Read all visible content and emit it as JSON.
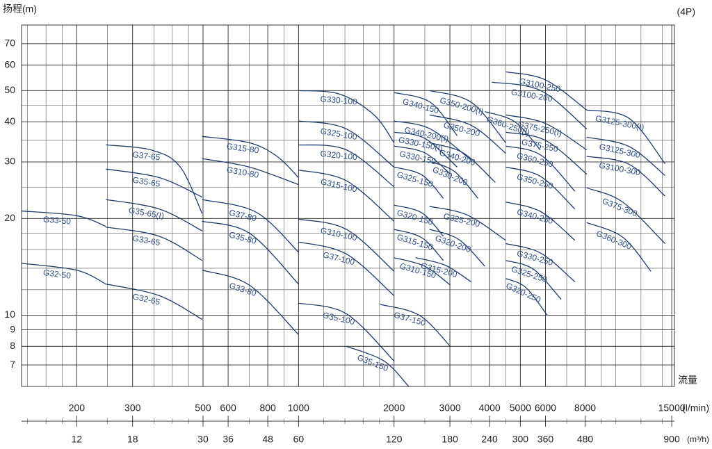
{
  "chart_data": {
    "type": "line",
    "annotation": "(4P)",
    "y_label": "扬程(m)",
    "x_label": "流量",
    "x_unit": "(l/min)",
    "x2_unit": "(m³/h)",
    "log_x": true,
    "log_y": true,
    "grid": true,
    "color": "#1f3a6b",
    "xlim": [
      134,
      15300
    ],
    "x2lim": [
      8.04,
      918
    ],
    "ylim": [
      6,
      80
    ],
    "xticks": [
      200,
      300,
      500,
      600,
      800,
      1000,
      2000,
      3000,
      4000,
      5000,
      6000,
      8000,
      15000
    ],
    "x2ticks": [
      12,
      18,
      30,
      36,
      48,
      60,
      120,
      180,
      240,
      300,
      360,
      480,
      900
    ],
    "yticks": [
      7,
      8,
      9,
      10,
      20,
      30,
      40,
      50,
      60,
      70
    ],
    "series": [
      {
        "name": "G33-50",
        "x": [
          134,
          200,
          247
        ],
        "values": [
          21.1,
          20.4,
          18.9
        ]
      },
      {
        "name": "G32-50",
        "x": [
          134,
          200,
          247
        ],
        "values": [
          14.5,
          13.8,
          12.5
        ]
      },
      {
        "name": "G37-65",
        "x": [
          247,
          346,
          424,
          497
        ],
        "values": [
          33.9,
          32.6,
          28.9,
          20.7
        ]
      },
      {
        "name": "G35-65",
        "x": [
          247,
          364,
          497
        ],
        "values": [
          28.5,
          26.8,
          23.3
        ]
      },
      {
        "name": "G35-65(I)",
        "x": [
          247,
          364,
          497
        ],
        "values": [
          22.9,
          21.4,
          18.3
        ]
      },
      {
        "name": "G33-65",
        "x": [
          247,
          364,
          497
        ],
        "values": [
          18.8,
          17.6,
          14.8
        ]
      },
      {
        "name": "G32-65",
        "x": [
          247,
          364,
          497
        ],
        "values": [
          12.5,
          11.5,
          9.7
        ]
      },
      {
        "name": "G315-80",
        "x": [
          497,
          700,
          856,
          1000
        ],
        "values": [
          36.0,
          34.4,
          31.2,
          26.8
        ]
      },
      {
        "name": "G310-80",
        "x": [
          497,
          700,
          1000
        ],
        "values": [
          30.7,
          28.9,
          25.5
        ]
      },
      {
        "name": "G37-80",
        "x": [
          497,
          736,
          1000
        ],
        "values": [
          22.9,
          20.9,
          15.7
        ]
      },
      {
        "name": "G35-80",
        "x": [
          497,
          700,
          1000
        ],
        "values": [
          19.6,
          18.0,
          12.5
        ]
      },
      {
        "name": "G33-80",
        "x": [
          497,
          700,
          1000
        ],
        "values": [
          13.8,
          12.4,
          8.7
        ]
      },
      {
        "name": "G330-100",
        "x": [
          1000,
          1345,
          1730,
          2000
        ],
        "values": [
          50.0,
          48.8,
          42.0,
          34.4
        ]
      },
      {
        "name": "G325-100",
        "x": [
          1000,
          1415,
          2000
        ],
        "values": [
          40.2,
          38.0,
          28.9
        ]
      },
      {
        "name": "G320-100",
        "x": [
          1000,
          1415,
          2000
        ],
        "values": [
          33.9,
          32.7,
          25.1
        ]
      },
      {
        "name": "G315-100",
        "x": [
          1000,
          1415,
          2000
        ],
        "values": [
          28.3,
          26.2,
          19.6
        ]
      },
      {
        "name": "G310-100",
        "x": [
          1000,
          1415,
          2000
        ],
        "values": [
          19.9,
          18.5,
          13.7
        ]
      },
      {
        "name": "G37-100",
        "x": [
          1000,
          1415,
          2000
        ],
        "values": [
          16.9,
          15.5,
          11.5
        ]
      },
      {
        "name": "G35-100",
        "x": [
          1000,
          1415,
          2000
        ],
        "values": [
          10.9,
          10.1,
          7.2
        ]
      },
      {
        "name": "G35-150",
        "x": [
          1415,
          1860,
          2224
        ],
        "values": [
          8.0,
          7.2,
          6.0
        ]
      },
      {
        "name": "G340-150",
        "x": [
          2000,
          2600,
          3162
        ],
        "values": [
          49.3,
          46,
          36.2
        ]
      },
      {
        "name": "G340-200(I)",
        "x": [
          2000,
          2600,
          3497
        ],
        "values": [
          40.2,
          38,
          30.4
        ]
      },
      {
        "name": "G330-150(I)",
        "x": [
          2000,
          2500,
          3162
        ],
        "values": [
          37.1,
          35.5,
          28.9
        ]
      },
      {
        "name": "G330-150",
        "x": [
          2000,
          2500,
          3008
        ],
        "values": [
          33.6,
          32,
          27.5
        ]
      },
      {
        "name": "G325-150",
        "x": [
          2000,
          2450,
          2860
        ],
        "values": [
          28.9,
          27.3,
          23.1
        ]
      },
      {
        "name": "G320-150",
        "x": [
          2000,
          2450,
          2860
        ],
        "values": [
          22.0,
          20.8,
          17.6
        ]
      },
      {
        "name": "G315-150",
        "x": [
          2000,
          2450,
          2860
        ],
        "values": [
          18.5,
          17.4,
          14.8
        ]
      },
      {
        "name": "G310-150",
        "x": [
          2000,
          2500,
          3008
        ],
        "values": [
          15.1,
          14.2,
          12.4
        ]
      },
      {
        "name": "G37-150",
        "x": [
          1809,
          2400,
          3008
        ],
        "values": [
          10.8,
          10.0,
          8.0
        ]
      },
      {
        "name": "G350-200(I)",
        "x": [
          2588,
          3500,
          4498
        ],
        "values": [
          50.0,
          46,
          34.4
        ]
      },
      {
        "name": "G350-200",
        "x": [
          2588,
          3500,
          4498
        ],
        "values": [
          42.0,
          39,
          31.9
        ]
      },
      {
        "name": "G340-200",
        "x": [
          2588,
          3300,
          4170
        ],
        "values": [
          34.4,
          32,
          25.9
        ]
      },
      {
        "name": "G330-200",
        "x": [
          2588,
          3100,
          3678
        ],
        "values": [
          30.1,
          28,
          23.1
        ]
      },
      {
        "name": "G325-200",
        "x": [
          2588,
          3400,
          4498
        ],
        "values": [
          21.8,
          20.5,
          17.1
        ]
      },
      {
        "name": "G320-200",
        "x": [
          2588,
          3200,
          3866
        ],
        "values": [
          18.5,
          17.2,
          14.2
        ]
      },
      {
        "name": "G315-200",
        "x": [
          2339,
          2900,
          3497
        ],
        "values": [
          15.1,
          14.3,
          12.7
        ]
      },
      {
        "name": "G3100-250",
        "x": [
          4498,
          6000,
          8093
        ],
        "values": [
          57.2,
          54,
          43.5
        ]
      },
      {
        "name": "G3100-200",
        "x": [
          4064,
          5800,
          8093
        ],
        "values": [
          53.1,
          50,
          38.0
        ]
      },
      {
        "name": "G360-250(I)",
        "x": [
          3866,
          4800,
          5780
        ],
        "values": [
          43.0,
          40,
          32.7
        ]
      },
      {
        "name": "G375-250(I)",
        "x": [
          4498,
          6000,
          8093
        ],
        "values": [
          42.0,
          39.5,
          32.7
        ]
      },
      {
        "name": "G375-250",
        "x": [
          4498,
          6000,
          8093
        ],
        "values": [
          37.1,
          35,
          27.5
        ]
      },
      {
        "name": "G360-250",
        "x": [
          4498,
          5800,
          7430
        ],
        "values": [
          33.6,
          31.5,
          24.3
        ]
      },
      {
        "name": "G350-250",
        "x": [
          4498,
          5800,
          7430
        ],
        "values": [
          28.9,
          27,
          21.4
        ]
      },
      {
        "name": "G340-250",
        "x": [
          4498,
          5800,
          7430
        ],
        "values": [
          22.5,
          21,
          17.1
        ]
      },
      {
        "name": "G330-250",
        "x": [
          4498,
          5800,
          7430
        ],
        "values": [
          16.7,
          15.6,
          12.7
        ]
      },
      {
        "name": "G325-250",
        "x": [
          4498,
          5500,
          6725
        ],
        "values": [
          14.8,
          13.9,
          11.2
        ]
      },
      {
        "name": "G320-250",
        "x": [
          4498,
          5200,
          6078
        ],
        "values": [
          13.0,
          12.2,
          10.0
        ]
      },
      {
        "name": "G3125-300(I)",
        "x": [
          8093,
          11000,
          14290
        ],
        "values": [
          43.5,
          41,
          29.6
        ]
      },
      {
        "name": "G3125-300",
        "x": [
          8093,
          11000,
          14290
        ],
        "values": [
          35.8,
          33.5,
          27.2
        ]
      },
      {
        "name": "G3100-300",
        "x": [
          8093,
          11000,
          14290
        ],
        "values": [
          31.2,
          29.5,
          23.5
        ]
      },
      {
        "name": "G375-300",
        "x": [
          8093,
          10500,
          14290
        ],
        "values": [
          24.9,
          22.5,
          16.7
        ]
      },
      {
        "name": "G360-300",
        "x": [
          8093,
          10500,
          12900
        ],
        "values": [
          19.4,
          17.5,
          13.7
        ]
      }
    ]
  }
}
